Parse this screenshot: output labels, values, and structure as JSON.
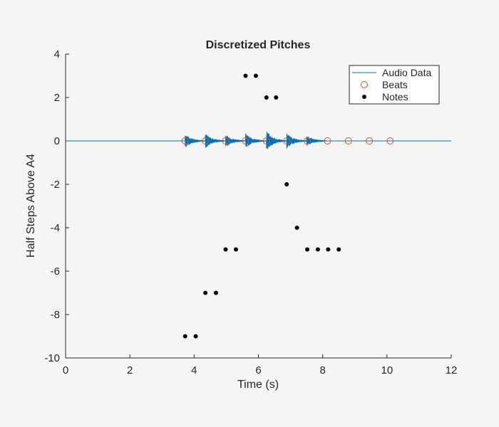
{
  "chart_data": {
    "type": "scatter",
    "title": "Discretized Pitches",
    "xlabel": "Time (s)",
    "ylabel": "Half Steps Above A4",
    "xlim": [
      0,
      12
    ],
    "ylim": [
      -10,
      4
    ],
    "x_ticks": [
      0,
      2,
      4,
      6,
      8,
      10,
      12
    ],
    "y_ticks": [
      -10,
      -8,
      -6,
      -4,
      -2,
      0,
      2,
      4
    ],
    "x_tick_labels": [
      "0",
      "2",
      "4",
      "6",
      "8",
      "10",
      "12"
    ],
    "y_tick_labels": [
      "-10",
      "-8",
      "-6",
      "-4",
      "-2",
      "0",
      "2",
      "4"
    ],
    "grid": false,
    "legend_position": "top-right",
    "series": [
      {
        "name": "Audio Data",
        "kind": "line",
        "color": "#0072bd",
        "x_range": [
          0,
          12
        ],
        "baseline": 0,
        "bursts": [
          {
            "t": 3.72,
            "amp": 0.28
          },
          {
            "t": 4.35,
            "amp": 0.3
          },
          {
            "t": 4.98,
            "amp": 0.25
          },
          {
            "t": 5.6,
            "amp": 0.3
          },
          {
            "t": 6.25,
            "amp": 0.45
          },
          {
            "t": 6.88,
            "amp": 0.32
          },
          {
            "t": 7.5,
            "amp": 0.2
          }
        ]
      },
      {
        "name": "Beats",
        "kind": "marker-circle",
        "color": "#d95319",
        "x": [
          3.72,
          4.35,
          4.98,
          5.6,
          6.25,
          6.88,
          7.52,
          8.15,
          8.8,
          9.45,
          10.1
        ],
        "y": [
          0,
          0,
          0,
          0,
          0,
          0,
          0,
          0,
          0,
          0,
          0
        ]
      },
      {
        "name": "Notes",
        "kind": "marker-dot",
        "color": "#000000",
        "x": [
          3.72,
          4.05,
          4.35,
          4.68,
          4.98,
          5.3,
          5.6,
          5.92,
          6.25,
          6.55,
          6.88,
          7.2,
          7.52,
          7.85,
          8.17,
          8.5
        ],
        "y": [
          -9,
          -9,
          -7,
          -7,
          -5,
          -5,
          3,
          3,
          2,
          2,
          -2,
          -4,
          -5,
          -5,
          -5,
          -5
        ]
      }
    ]
  }
}
